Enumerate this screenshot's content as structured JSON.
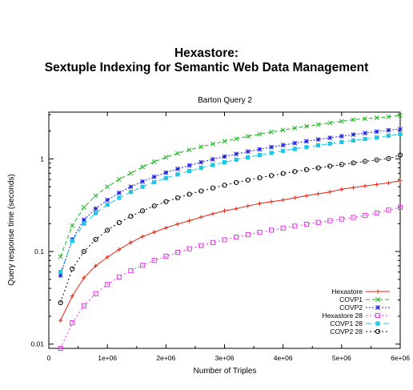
{
  "header": {
    "title_line1": "Hexastore:",
    "title_line2": "Sextuple Indexing for Semantic Web Data Management"
  },
  "chart_data": {
    "type": "line",
    "title": "Barton Query 2",
    "xlabel": "Number of Triples",
    "ylabel": "Query response time (seconds)",
    "x_scale": "linear",
    "y_scale": "log",
    "xlim": [
      0,
      6000000
    ],
    "ylim": [
      0.009,
      3.2
    ],
    "x_ticks": [
      0,
      1000000,
      2000000,
      3000000,
      4000000,
      5000000,
      6000000
    ],
    "x_tick_labels": [
      "0",
      "1e+06",
      "2e+06",
      "3e+06",
      "4e+06",
      "5e+06",
      "6e+06"
    ],
    "y_ticks": [
      0.01,
      0.1,
      1
    ],
    "y_tick_labels": [
      "0.01",
      "0.1",
      "1"
    ],
    "grid": false,
    "legend_position": "bottom-right",
    "x": [
      200000,
      400000,
      600000,
      800000,
      1000000,
      1200000,
      1400000,
      1600000,
      1800000,
      2000000,
      2200000,
      2400000,
      2600000,
      2800000,
      3000000,
      3200000,
      3400000,
      3600000,
      3800000,
      4000000,
      4200000,
      4400000,
      4600000,
      4800000,
      5000000,
      5200000,
      5400000,
      5600000,
      5800000,
      6000000
    ],
    "series": [
      {
        "name": "Hexastore",
        "color": "#e8220e",
        "dash": "",
        "marker": "plus",
        "values": [
          0.018,
          0.033,
          0.052,
          0.07,
          0.087,
          0.105,
          0.125,
          0.145,
          0.162,
          0.18,
          0.198,
          0.215,
          0.235,
          0.255,
          0.275,
          0.29,
          0.31,
          0.33,
          0.345,
          0.36,
          0.38,
          0.4,
          0.42,
          0.44,
          0.47,
          0.49,
          0.51,
          0.53,
          0.55,
          0.58
        ]
      },
      {
        "name": "COVP1",
        "color": "#19b51a",
        "dash": "5,3",
        "marker": "x",
        "values": [
          0.088,
          0.19,
          0.3,
          0.4,
          0.5,
          0.6,
          0.7,
          0.82,
          0.93,
          1.04,
          1.15,
          1.25,
          1.35,
          1.45,
          1.55,
          1.65,
          1.75,
          1.85,
          1.95,
          2.05,
          2.15,
          2.25,
          2.35,
          2.45,
          2.55,
          2.65,
          2.72,
          2.78,
          2.85,
          2.95
        ]
      },
      {
        "name": "COVP2",
        "color": "#2222dd",
        "dash": "2,2",
        "marker": "star",
        "values": [
          0.055,
          0.135,
          0.22,
          0.29,
          0.36,
          0.43,
          0.5,
          0.57,
          0.64,
          0.71,
          0.78,
          0.85,
          0.92,
          0.99,
          1.06,
          1.13,
          1.2,
          1.27,
          1.34,
          1.41,
          1.48,
          1.55,
          1.62,
          1.69,
          1.76,
          1.83,
          1.9,
          1.97,
          2.04,
          2.1
        ]
      },
      {
        "name": "Hexastore 28",
        "color": "#e23ae2",
        "dash": "2,3",
        "marker": "opensquare",
        "values": [
          0.009,
          0.017,
          0.026,
          0.035,
          0.044,
          0.053,
          0.062,
          0.071,
          0.08,
          0.089,
          0.098,
          0.107,
          0.116,
          0.125,
          0.134,
          0.143,
          0.152,
          0.161,
          0.17,
          0.179,
          0.188,
          0.197,
          0.206,
          0.215,
          0.224,
          0.233,
          0.245,
          0.26,
          0.28,
          0.3
        ]
      },
      {
        "name": "COVP1 28",
        "color": "#1cc7e8",
        "dash": "7,4",
        "marker": "filledsquare",
        "values": [
          0.06,
          0.13,
          0.2,
          0.26,
          0.32,
          0.38,
          0.44,
          0.5,
          0.56,
          0.62,
          0.68,
          0.74,
          0.8,
          0.86,
          0.92,
          0.98,
          1.04,
          1.1,
          1.16,
          1.22,
          1.28,
          1.34,
          1.4,
          1.46,
          1.52,
          1.58,
          1.64,
          1.7,
          1.78,
          1.85
        ]
      },
      {
        "name": "COVP2 28",
        "color": "#000000",
        "dash": "2,3",
        "marker": "opencircle",
        "values": [
          0.028,
          0.065,
          0.1,
          0.135,
          0.17,
          0.205,
          0.24,
          0.275,
          0.31,
          0.345,
          0.38,
          0.415,
          0.45,
          0.485,
          0.52,
          0.555,
          0.59,
          0.625,
          0.66,
          0.695,
          0.73,
          0.765,
          0.8,
          0.835,
          0.87,
          0.905,
          0.94,
          0.975,
          1.01,
          1.1
        ]
      }
    ]
  }
}
